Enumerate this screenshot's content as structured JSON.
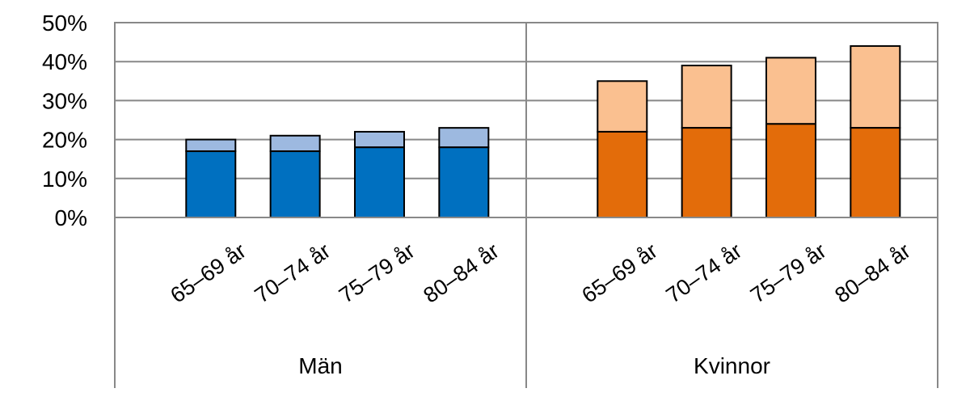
{
  "chart_data": {
    "type": "bar",
    "stacked": true,
    "title": "",
    "xlabel": "",
    "ylabel": "",
    "ylim": [
      0,
      50
    ],
    "y_ticks": [
      "0%",
      "10%",
      "20%",
      "30%",
      "40%",
      "50%"
    ],
    "grid": true,
    "legend": "none",
    "groups": [
      {
        "label": "Män",
        "categories": [
          "65–69 år",
          "70–74 år",
          "75–79 år",
          "80–84 år"
        ],
        "colors": {
          "lower": "#0070c0",
          "upper": "#9db9e0"
        },
        "lower": [
          17,
          17,
          18,
          18
        ],
        "total": [
          20,
          21,
          22,
          23
        ]
      },
      {
        "label": "Kvinnor",
        "categories": [
          "65–69 år",
          "70–74 år",
          "75–79 år",
          "80–84 år"
        ],
        "colors": {
          "lower": "#e36c0a",
          "upper": "#fac090"
        },
        "lower": [
          22,
          23,
          24,
          23
        ],
        "total": [
          35,
          39,
          41,
          44
        ]
      }
    ]
  }
}
